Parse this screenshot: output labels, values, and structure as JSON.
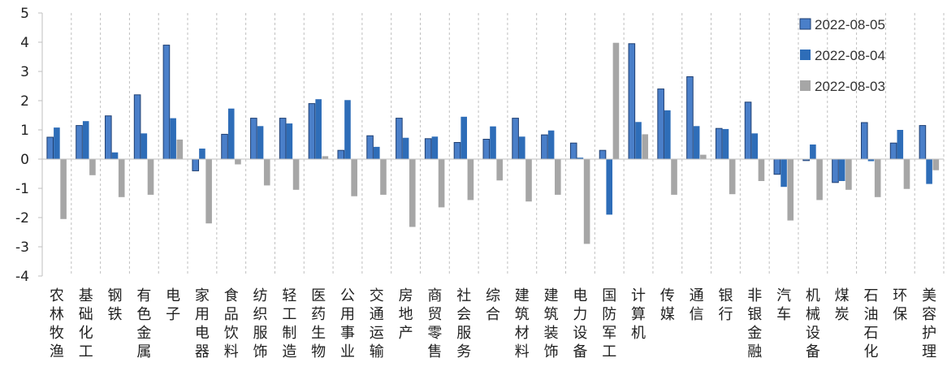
{
  "chart_data": {
    "type": "bar",
    "title": "",
    "xlabel": "",
    "ylabel": "",
    "ylim": [
      -4,
      5
    ],
    "yticks": [
      -4,
      -3,
      -2,
      -1,
      0,
      1,
      2,
      3,
      4,
      5
    ],
    "grid": "vertical dashed between categories",
    "legend_position": "top-right",
    "categories": [
      "农林牧渔",
      "基础化工",
      "钢铁",
      "有色金属",
      "电子",
      "家用电器",
      "食品饮料",
      "纺织服饰",
      "轻工制造",
      "医药生物",
      "公用事业",
      "交通运输",
      "房地产",
      "商贸零售",
      "社会服务",
      "综合",
      "建筑材料",
      "建筑装饰",
      "电力设备",
      "国防军工",
      "计算机",
      "传媒",
      "通信",
      "银行",
      "非银金融",
      "汽车",
      "机械设备",
      "煤炭",
      "石油石化",
      "环保",
      "美容护理"
    ],
    "series": [
      {
        "name": "2022-08-05",
        "color": "#4a7fc9",
        "style": "outlined",
        "values": [
          0.75,
          1.15,
          1.48,
          2.2,
          3.9,
          -0.4,
          0.85,
          1.4,
          1.4,
          1.9,
          0.3,
          0.8,
          1.4,
          0.7,
          0.57,
          0.68,
          1.4,
          0.83,
          0.55,
          0.3,
          3.95,
          2.4,
          2.82,
          1.05,
          1.95,
          -0.52,
          -0.05,
          -0.8,
          1.25,
          0.55,
          1.15
        ]
      },
      {
        "name": "2022-08-04",
        "color": "#2e6db8",
        "style": "solid",
        "values": [
          1.08,
          1.3,
          0.23,
          0.88,
          1.4,
          0.36,
          1.73,
          1.13,
          1.22,
          2.05,
          2.02,
          0.42,
          0.73,
          0.77,
          1.45,
          1.12,
          0.77,
          0.98,
          0.05,
          -1.9,
          1.27,
          1.67,
          1.13,
          1.03,
          0.88,
          -0.95,
          0.5,
          -0.75,
          -0.07,
          1.0,
          -0.85
        ]
      },
      {
        "name": "2022-08-03",
        "color": "#a6a6a6",
        "style": "solid",
        "values": [
          -2.05,
          -0.55,
          -1.3,
          -1.22,
          0.67,
          -2.2,
          -0.18,
          -0.9,
          -1.05,
          0.1,
          -1.27,
          -1.22,
          -2.32,
          -1.65,
          -1.4,
          -0.73,
          -1.45,
          -1.22,
          -2.9,
          3.98,
          0.85,
          -1.22,
          0.15,
          -1.2,
          -0.75,
          -2.1,
          -1.4,
          -1.05,
          -1.3,
          -1.02,
          -0.38
        ]
      }
    ]
  }
}
